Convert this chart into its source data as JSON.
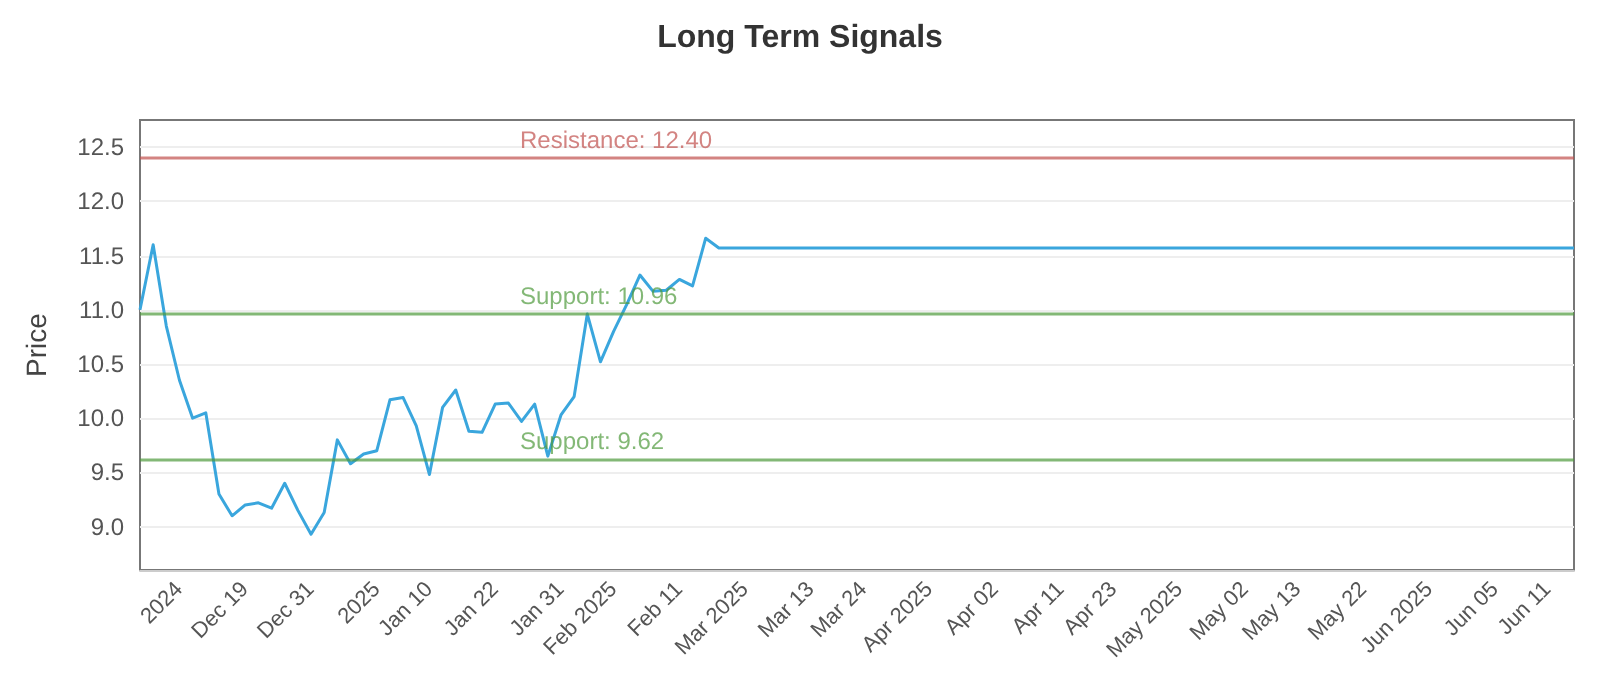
{
  "chart_data": {
    "type": "line",
    "title": "Long Term Signals",
    "ylabel": "Price",
    "categories": [
      null,
      null,
      null,
      "2024",
      null,
      null,
      null,
      null,
      "Dec 19",
      null,
      null,
      null,
      null,
      "Dec 31",
      null,
      null,
      null,
      null,
      "2025",
      null,
      null,
      null,
      "Jan 10",
      null,
      null,
      null,
      null,
      "Jan 22",
      null,
      null,
      null,
      null,
      "Jan 31",
      null,
      null,
      null,
      "Feb 2025",
      null,
      null,
      null,
      null,
      "Feb 11",
      null,
      null,
      null,
      null,
      "Mar 2025",
      null,
      null,
      null,
      null,
      "Mar 13",
      null,
      null,
      null,
      "Mar 24",
      null,
      null,
      null,
      null,
      "Apr 2025",
      null,
      null,
      null,
      null,
      "Apr 02",
      null,
      null,
      null,
      null,
      "Apr 11",
      null,
      null,
      null,
      "Apr 23",
      null,
      null,
      null,
      null,
      "May 2025",
      null,
      null,
      null,
      null,
      "May 02",
      null,
      null,
      null,
      "May 13",
      null,
      null,
      null,
      null,
      "May 22",
      null,
      null,
      null,
      null,
      "Jun 2025",
      null,
      null,
      null,
      null,
      "Jun 05",
      null,
      null,
      null,
      "Jun 11",
      null,
      null
    ],
    "series": [
      {
        "color": "#3aa6dd",
        "values": [
          11.0,
          11.6,
          10.85,
          10.35,
          10.0,
          10.05,
          9.3,
          9.1,
          9.2,
          9.22,
          9.17,
          9.4,
          9.15,
          8.93,
          9.13,
          9.8,
          9.58,
          9.67,
          9.7,
          10.17,
          10.19,
          9.93,
          9.48,
          10.1,
          10.26,
          9.88,
          9.87,
          10.13,
          10.14,
          9.97,
          10.13,
          9.65,
          10.03,
          10.2,
          10.96,
          10.52,
          10.8,
          11.05,
          11.32,
          11.17,
          11.18,
          11.28,
          11.22,
          11.66,
          11.57,
          11.57,
          11.57,
          11.57,
          11.57,
          11.57,
          11.57,
          11.57,
          11.57,
          11.57,
          11.57,
          11.57,
          11.57,
          11.57,
          11.57,
          11.57,
          11.57,
          11.57,
          11.57,
          11.57,
          11.57,
          11.57,
          11.57,
          11.57,
          11.57,
          11.57,
          11.57,
          11.57,
          11.57,
          11.57,
          11.57,
          11.57,
          11.57,
          11.57,
          11.57,
          11.57,
          11.57,
          11.57,
          11.57,
          11.57,
          11.57,
          11.57,
          11.57,
          11.57,
          11.57,
          11.57,
          11.57,
          11.57,
          11.57,
          11.57,
          11.57,
          11.57,
          11.57,
          11.57,
          11.57,
          11.57,
          11.57,
          11.57,
          11.57,
          11.57,
          11.57,
          11.57,
          11.57,
          11.57,
          11.57,
          11.57
        ]
      }
    ],
    "ylim": [
      8.6,
      12.75
    ],
    "yticks": [
      {
        "value": 9,
        "label": "9.0"
      },
      9.5,
      {
        "value": 10,
        "label": "10.0"
      },
      10.5,
      {
        "value": 11,
        "label": "11.0"
      },
      11.5,
      {
        "value": 12,
        "label": "12.0"
      },
      12.5
    ],
    "ref_lines": [
      {
        "axis": "y",
        "value": 12.4,
        "label": "Resistance: 12.40",
        "color": "#c0504d"
      },
      {
        "axis": "y",
        "value": 10.96,
        "label": "Support: 10.96",
        "color": "#4f9a3c"
      },
      {
        "axis": "y",
        "value": 9.62,
        "label": "Support: 9.62",
        "color": "#4f9a3c"
      }
    ],
    "grid": "y",
    "marker": "none",
    "line_style": "solid"
  }
}
